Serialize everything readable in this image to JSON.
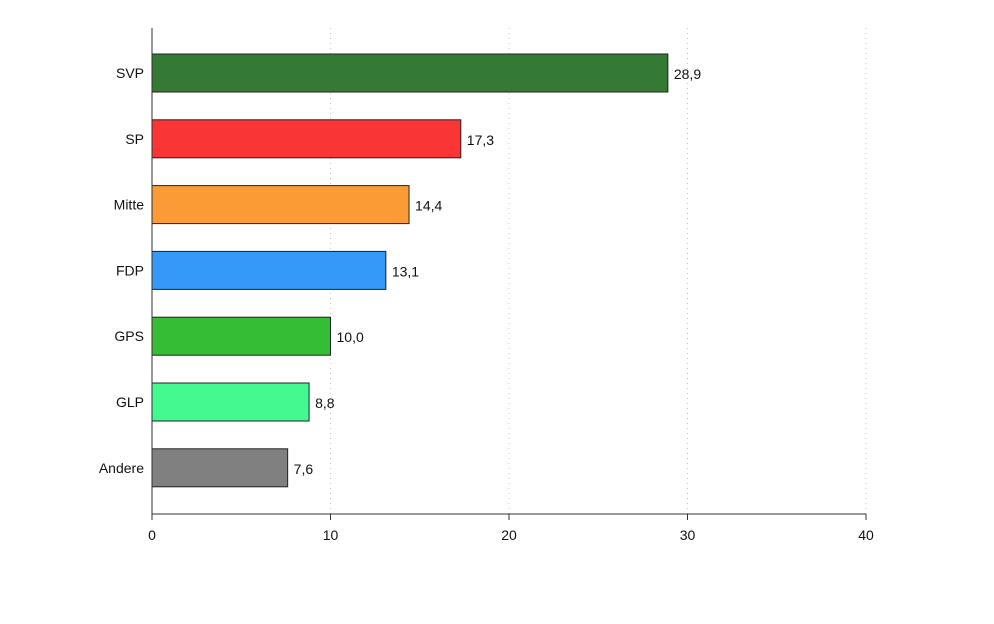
{
  "chart_data": {
    "type": "bar",
    "orientation": "horizontal",
    "title": "",
    "xlabel": "",
    "ylabel": "",
    "categories": [
      "SVP",
      "SP",
      "Mitte",
      "FDP",
      "GPS",
      "GLP",
      "Andere"
    ],
    "values": [
      28.9,
      17.3,
      14.4,
      13.1,
      10.0,
      8.8,
      7.6
    ],
    "value_labels": [
      "28,9",
      "17,3",
      "14,4",
      "13,1",
      "10,0",
      "8,8",
      "7,6"
    ],
    "colors": [
      "#347A34",
      "#FA3535",
      "#FA9B35",
      "#3599FA",
      "#35BE35",
      "#44FA90",
      "#808080"
    ],
    "xlim": [
      0,
      40
    ],
    "xticks": [
      0,
      10,
      20,
      30,
      40
    ],
    "xtick_labels": [
      "0",
      "10",
      "20",
      "30",
      "40"
    ],
    "grid": true,
    "legend": "none"
  }
}
